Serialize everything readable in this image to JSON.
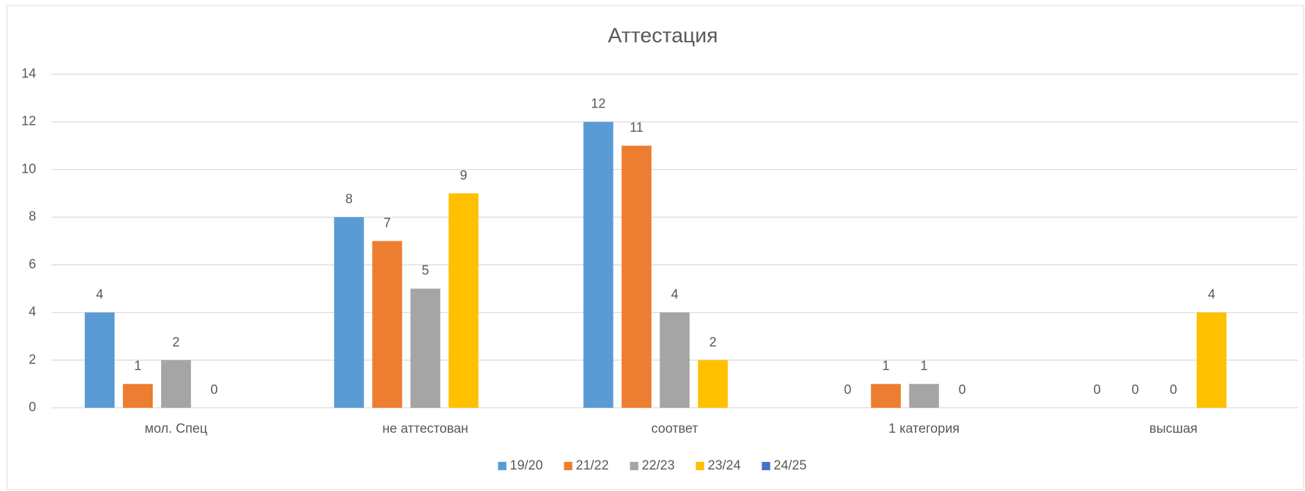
{
  "chart_data": {
    "type": "bar",
    "title": "Аттестация",
    "categories": [
      "мол. Спец",
      "не аттестован",
      "соответ",
      "1 категория",
      "высшая"
    ],
    "series": [
      {
        "name": "19/20",
        "color": "#5b9bd5",
        "values": [
          4,
          8,
          12,
          0,
          0
        ]
      },
      {
        "name": "21/22",
        "color": "#ed7d31",
        "values": [
          1,
          7,
          11,
          1,
          0
        ]
      },
      {
        "name": "22/23",
        "color": "#a5a5a5",
        "values": [
          2,
          5,
          4,
          1,
          0
        ]
      },
      {
        "name": "23/24",
        "color": "#ffc000",
        "values": [
          0,
          9,
          2,
          0,
          4
        ]
      },
      {
        "name": "24/25",
        "color": "#4472c4",
        "values": [
          null,
          null,
          null,
          null,
          null
        ]
      }
    ],
    "ylim": [
      0,
      14
    ],
    "yticks": [
      0,
      2,
      4,
      6,
      8,
      10,
      12,
      14
    ],
    "grid": true,
    "legend": "bottom"
  }
}
